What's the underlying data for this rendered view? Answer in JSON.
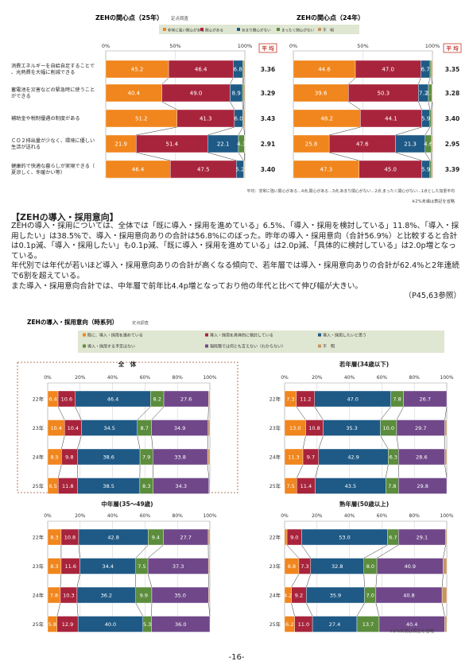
{
  "colors": {
    "orange": "#f0861d",
    "crimson": "#a8243c",
    "navy": "#1f5a86",
    "green": "#5b8d3c",
    "purple": "#70488a",
    "tan": "#c89560"
  },
  "interest": {
    "legend": [
      "非常に強い関心がある",
      "関心がある",
      "あまり関心がない",
      "まったく関心がない",
      "不　明"
    ],
    "avg_label": "平 均",
    "axis_ticks": [
      "0%",
      "50%",
      "100%"
    ],
    "categories": [
      "消費エネルギーを自給自足することで、光熱費を大幅に削減できる",
      "蓄電池を災害などの緊急時に使うことができる",
      "補助金や税制優遇の制度がある",
      "ＣＯ２排出量が少なく、環境に優しい生活が送れる",
      "健康的で快適な暮らしが実現できる（夏涼しく、冬暖かい等）"
    ],
    "charts": [
      {
        "title": "ZEHの関心点（25年）",
        "subtitle": "定点調査",
        "averages": [
          "3.36",
          "3.29",
          "3.43",
          "2.91",
          "3.40"
        ],
        "rows": [
          [
            45.2,
            46.4,
            6.8,
            0.9,
            0.7
          ],
          [
            40.4,
            49.0,
            8.9,
            1.0,
            0.7
          ],
          [
            51.2,
            41.3,
            6.0,
            0.8,
            0.7
          ],
          [
            21.9,
            51.4,
            22.1,
            4.3,
            0.3
          ],
          [
            46.4,
            47.5,
            5.2,
            0.6,
            0.3
          ]
        ],
        "labels": [
          [
            "45.2",
            "46.4",
            "6.8",
            "",
            ""
          ],
          [
            "40.4",
            "49.0",
            "8.9",
            "",
            ""
          ],
          [
            "51.2",
            "41.3",
            "6.0",
            "",
            ""
          ],
          [
            "21.9",
            "51.4",
            "22.1",
            "4.3",
            ""
          ],
          [
            "46.4",
            "47.5",
            "5.2",
            "",
            ""
          ]
        ]
      },
      {
        "title": "ZEHの関心点（24年）",
        "subtitle": "",
        "averages": [
          "3.35",
          "3.28",
          "3.40",
          "2.95",
          "3.39"
        ],
        "rows": [
          [
            44.6,
            47.0,
            6.7,
            1.0,
            0.7
          ],
          [
            39.6,
            50.3,
            7.2,
            2.5,
            0.4
          ],
          [
            48.2,
            44.1,
            5.9,
            1.1,
            0.7
          ],
          [
            25.8,
            47.6,
            21.3,
            4.6,
            0.7
          ],
          [
            47.3,
            45.0,
            5.9,
            1.1,
            0.7
          ]
        ],
        "labels": [
          [
            "44.6",
            "47.0",
            "6.7",
            "",
            ""
          ],
          [
            "39.6",
            "50.3",
            "7.2",
            "2.5",
            ""
          ],
          [
            "48.2",
            "44.1",
            "5.9",
            "",
            ""
          ],
          [
            "25.8",
            "47.6",
            "21.3",
            "4.6",
            ""
          ],
          [
            "47.3",
            "45.0",
            "5.9",
            "",
            ""
          ]
        ]
      }
    ],
    "footnote": "平均：非常に強い関心がある…4点,関心がある…3点,あまり関心がない…2点,まったく関心がない…1点とした加重平均",
    "note": "※2%未満は表記を省略"
  },
  "section": {
    "title": "【ZEHの導入・採用意向】",
    "paragraphs": [
      "ZEHの導入・採用については、全体では「既に導入・採用を進めている」6.5%、「導入・採用を検討している」11.8%、「導入・採用したい」は38.5%で、導入・採用意向ありの合計は56.8%にのぼった。昨年の導入・採用意向（合計56.9%）と比較すると合計は0.1p減、「導入・採用したい」も0.1p減、「既に導入・採用を進めている」は2.0p減、「具体的に検討している」は2.0p増となっている。",
      "年代別では年代が若いほど導入・採用意向ありの合計が高くなる傾向で、若年層では導入・採用意向ありの合計が62.4%と2年連続で6割を超えている。",
      "また導入・採用意向合計では、中年層で前年比4.4p増となっており他の年代と比べて伸び幅が大きい。"
    ],
    "ref": "（P45,63参照）"
  },
  "adoption": {
    "title": "ZEHの導入・採用意向（時系列）",
    "subtitle": "定点調査",
    "legend": [
      "既に、導入・採用を進めている",
      "導入・採用を具体的に検討している",
      "導入・採用したいと思う",
      "導入・採用する予定はない",
      "現段階では何とも言えない（わからない）",
      "不　明"
    ],
    "axis_ticks": [
      "0%",
      "20%",
      "40%",
      "60%",
      "80%",
      "100%"
    ],
    "years": [
      "22年",
      "23年",
      "24年",
      "25年"
    ],
    "charts": [
      {
        "title": "全　体",
        "rows": [
          [
            6.4,
            10.6,
            46.4,
            8.2,
            27.6,
            0.8
          ],
          [
            10.4,
            10.4,
            34.5,
            8.7,
            34.9,
            1.1
          ],
          [
            8.5,
            9.8,
            38.6,
            7.9,
            33.8,
            1.4
          ],
          [
            6.5,
            11.8,
            38.5,
            8.3,
            34.3,
            0.6
          ]
        ],
        "labels": [
          [
            "6.4",
            "10.6",
            "46.4",
            "8.2",
            "27.6",
            ""
          ],
          [
            "10.4",
            "10.4",
            "34.5",
            "8.7",
            "34.9",
            ""
          ],
          [
            "8.5",
            "9.8",
            "38.6",
            "7.9",
            "33.8",
            ""
          ],
          [
            "6.5",
            "11.8",
            "38.5",
            "8.3",
            "34.3",
            ""
          ]
        ]
      },
      {
        "title": "若年層(34歳以下)",
        "rows": [
          [
            7.3,
            11.2,
            47.0,
            7.8,
            26.7,
            0.0
          ],
          [
            13.0,
            10.8,
            35.3,
            10.0,
            29.7,
            1.2
          ],
          [
            11.3,
            9.7,
            42.9,
            6.3,
            28.6,
            1.2
          ],
          [
            7.5,
            11.4,
            43.5,
            7.8,
            29.8,
            0.0
          ]
        ],
        "labels": [
          [
            "7.3",
            "11.2",
            "47.0",
            "7.8",
            "26.7",
            ""
          ],
          [
            "13.0",
            "10.8",
            "35.3",
            "10.0",
            "29.7",
            ""
          ],
          [
            "11.3",
            "9.7",
            "42.9",
            "6.3",
            "28.6",
            ""
          ],
          [
            "7.5",
            "11.4",
            "43.5",
            "7.8",
            "29.8",
            ""
          ]
        ]
      },
      {
        "title": "中年層(35〜49歳)",
        "rows": [
          [
            8.3,
            10.8,
            42.8,
            9.4,
            27.7,
            1.0
          ],
          [
            8.3,
            11.6,
            34.4,
            7.5,
            37.3,
            0.9
          ],
          [
            7.8,
            10.3,
            36.2,
            9.9,
            35.0,
            0.8
          ],
          [
            5.8,
            12.9,
            40.0,
            5.3,
            36.0,
            0.0
          ]
        ],
        "labels": [
          [
            "8.3",
            "10.8",
            "42.8",
            "9.4",
            "27.7",
            ""
          ],
          [
            "8.3",
            "11.6",
            "34.4",
            "7.5",
            "37.3",
            ""
          ],
          [
            "7.8",
            "10.3",
            "36.2",
            "9.9",
            "35.0",
            ""
          ],
          [
            "5.8",
            "12.9",
            "40.0",
            "5.3",
            "36.0",
            ""
          ]
        ]
      },
      {
        "title": "熟年層(50歳以上)",
        "rows": [
          [
            1.5,
            9.0,
            53.0,
            6.7,
            29.1,
            0.7
          ],
          [
            8.8,
            7.3,
            32.8,
            8.0,
            40.9,
            2.2
          ],
          [
            4.2,
            9.2,
            35.9,
            7.0,
            40.8,
            2.9
          ],
          [
            6.2,
            11.0,
            27.4,
            13.7,
            40.4,
            1.3
          ]
        ],
        "labels": [
          [
            "",
            "9.0",
            "53.0",
            "6.7",
            "29.1",
            ""
          ],
          [
            "8.8",
            "7.3",
            "32.8",
            "8.0",
            "40.9",
            ""
          ],
          [
            "4.2",
            "9.2",
            "35.9",
            "7.0",
            "40.8",
            ""
          ],
          [
            "6.2",
            "11.0",
            "27.4",
            "13.7",
            "40.4",
            ""
          ]
        ]
      }
    ],
    "note": "※3%未満は表記を省略"
  },
  "page_number": "-16-",
  "chart_data": [
    {
      "type": "bar",
      "title": "ZEHの関心点（25年）",
      "categories": [
        "消費エネルギーを自給自足することで、光熱費を大幅に削減できる",
        "蓄電池を災害などの緊急時に使うことができる",
        "補助金や税制優遇の制度がある",
        "ＣＯ２排出量が少なく、環境に優しい生活が送れる",
        "健康的で快適な暮らしが実現できる（夏涼しく、冬暖かい等）"
      ],
      "series": [
        {
          "name": "非常に強い関心がある",
          "values": [
            45.2,
            40.4,
            51.2,
            21.9,
            46.4
          ]
        },
        {
          "name": "関心がある",
          "values": [
            46.4,
            49.0,
            41.3,
            51.4,
            47.5
          ]
        },
        {
          "name": "あまり関心がない",
          "values": [
            6.8,
            8.9,
            6.0,
            22.1,
            5.2
          ]
        },
        {
          "name": "まったく関心がない",
          "values": [
            0.9,
            1.0,
            0.8,
            4.3,
            0.6
          ]
        },
        {
          "name": "不　明",
          "values": [
            0.7,
            0.7,
            0.7,
            0.3,
            0.3
          ]
        }
      ],
      "xlim": [
        0,
        100
      ]
    },
    {
      "type": "bar",
      "title": "ZEHの関心点（24年）",
      "categories": [
        "消費エネルギーを自給自足することで、光熱費を大幅に削減できる",
        "蓄電池を災害などの緊急時に使うことができる",
        "補助金や税制優遇の制度がある",
        "ＣＯ２排出量が少なく、環境に優しい生活が送れる",
        "健康的で快適な暮らしが実現できる（夏涼しく、冬暖かい等）"
      ],
      "series": [
        {
          "name": "非常に強い関心がある",
          "values": [
            44.6,
            39.6,
            48.2,
            25.8,
            47.3
          ]
        },
        {
          "name": "関心がある",
          "values": [
            47.0,
            50.3,
            44.1,
            47.6,
            45.0
          ]
        },
        {
          "name": "あまり関心がない",
          "values": [
            6.7,
            7.2,
            5.9,
            21.3,
            5.9
          ]
        },
        {
          "name": "まったく関心がない",
          "values": [
            1.0,
            2.5,
            1.1,
            4.6,
            1.1
          ]
        },
        {
          "name": "不　明",
          "values": [
            0.7,
            0.4,
            0.7,
            0.7,
            0.7
          ]
        }
      ],
      "xlim": [
        0,
        100
      ]
    },
    {
      "type": "bar",
      "title": "全　体",
      "categories": [
        "22年",
        "23年",
        "24年",
        "25年"
      ],
      "series": [
        {
          "name": "既に、導入・採用を進めている",
          "values": [
            6.4,
            10.4,
            8.5,
            6.5
          ]
        },
        {
          "name": "導入・採用を具体的に検討している",
          "values": [
            10.6,
            10.4,
            9.8,
            11.8
          ]
        },
        {
          "name": "導入・採用したいと思う",
          "values": [
            46.4,
            34.5,
            38.6,
            38.5
          ]
        },
        {
          "name": "導入・採用する予定はない",
          "values": [
            8.2,
            8.7,
            7.9,
            8.3
          ]
        },
        {
          "name": "現段階では何とも言えない（わからない）",
          "values": [
            27.6,
            34.9,
            33.8,
            34.3
          ]
        },
        {
          "name": "不　明",
          "values": [
            0.8,
            1.1,
            1.4,
            0.6
          ]
        }
      ],
      "xlim": [
        0,
        100
      ]
    },
    {
      "type": "bar",
      "title": "若年層(34歳以下)",
      "categories": [
        "22年",
        "23年",
        "24年",
        "25年"
      ],
      "series": [
        {
          "name": "既に、導入・採用を進めている",
          "values": [
            7.3,
            13.0,
            11.3,
            7.5
          ]
        },
        {
          "name": "導入・採用を具体的に検討している",
          "values": [
            11.2,
            10.8,
            9.7,
            11.4
          ]
        },
        {
          "name": "導入・採用したいと思う",
          "values": [
            47.0,
            35.3,
            42.9,
            43.5
          ]
        },
        {
          "name": "導入・採用する予定はない",
          "values": [
            7.8,
            10.0,
            6.3,
            7.8
          ]
        },
        {
          "name": "現段階では何とも言えない（わからない）",
          "values": [
            26.7,
            29.7,
            28.6,
            29.8
          ]
        },
        {
          "name": "不　明",
          "values": [
            0.0,
            1.2,
            1.2,
            0.0
          ]
        }
      ],
      "xlim": [
        0,
        100
      ]
    },
    {
      "type": "bar",
      "title": "中年層(35〜49歳)",
      "categories": [
        "22年",
        "23年",
        "24年",
        "25年"
      ],
      "series": [
        {
          "name": "既に、導入・採用を進めている",
          "values": [
            8.3,
            8.3,
            7.8,
            5.8
          ]
        },
        {
          "name": "導入・採用を具体的に検討している",
          "values": [
            10.8,
            11.6,
            10.3,
            12.9
          ]
        },
        {
          "name": "導入・採用したいと思う",
          "values": [
            42.8,
            34.4,
            36.2,
            40.0
          ]
        },
        {
          "name": "導入・採用する予定はない",
          "values": [
            9.4,
            7.5,
            9.9,
            5.3
          ]
        },
        {
          "name": "現段階では何とも言えない（わからない）",
          "values": [
            27.7,
            37.3,
            35.0,
            36.0
          ]
        },
        {
          "name": "不　明",
          "values": [
            1.0,
            0.9,
            0.8,
            0.0
          ]
        }
      ],
      "xlim": [
        0,
        100
      ]
    },
    {
      "type": "bar",
      "title": "熟年層(50歳以上)",
      "categories": [
        "22年",
        "23年",
        "24年",
        "25年"
      ],
      "series": [
        {
          "name": "既に、導入・採用を進めている",
          "values": [
            1.5,
            8.8,
            4.2,
            6.2
          ]
        },
        {
          "name": "導入・採用を具体的に検討している",
          "values": [
            9.0,
            7.3,
            9.2,
            11.0
          ]
        },
        {
          "name": "導入・採用したいと思う",
          "values": [
            53.0,
            32.8,
            35.9,
            27.4
          ]
        },
        {
          "name": "導入・採用する予定はない",
          "values": [
            6.7,
            8.0,
            7.0,
            13.7
          ]
        },
        {
          "name": "現段階では何とも言えない（わからない）",
          "values": [
            29.1,
            40.9,
            40.8,
            40.4
          ]
        },
        {
          "name": "不　明",
          "values": [
            0.7,
            2.2,
            2.9,
            1.3
          ]
        }
      ],
      "xlim": [
        0,
        100
      ]
    }
  ]
}
